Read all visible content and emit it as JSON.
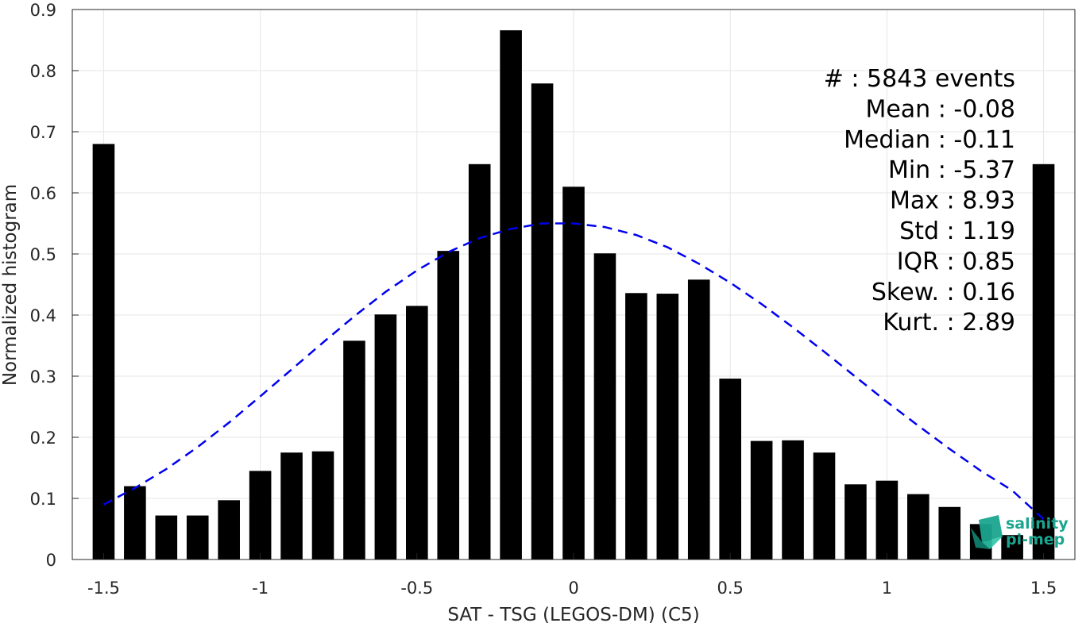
{
  "chart_data": {
    "type": "bar",
    "xlabel": "SAT - TSG (LEGOS-DM) (C5)",
    "ylabel": "Normalized histogram",
    "xlim": [
      -1.6,
      1.6
    ],
    "ylim": [
      0,
      0.9
    ],
    "grid": true,
    "bar_width": 0.07,
    "x_ticks": [
      {
        "value": -1.5,
        "label": "-1.5"
      },
      {
        "value": -1,
        "label": "-1"
      },
      {
        "value": -0.5,
        "label": "-0.5"
      },
      {
        "value": 0,
        "label": "0"
      },
      {
        "value": 0.5,
        "label": "0.5"
      },
      {
        "value": 1,
        "label": "1"
      },
      {
        "value": 1.5,
        "label": "1.5"
      }
    ],
    "y_ticks": [
      {
        "value": 0,
        "label": "0"
      },
      {
        "value": 0.1,
        "label": "0.1"
      },
      {
        "value": 0.2,
        "label": "0.2"
      },
      {
        "value": 0.3,
        "label": "0.3"
      },
      {
        "value": 0.4,
        "label": "0.4"
      },
      {
        "value": 0.5,
        "label": "0.5"
      },
      {
        "value": 0.6,
        "label": "0.6"
      },
      {
        "value": 0.7,
        "label": "0.7"
      },
      {
        "value": 0.8,
        "label": "0.8"
      },
      {
        "value": 0.9,
        "label": "0.9"
      }
    ],
    "bars": {
      "x": [
        -1.5,
        -1.4,
        -1.3,
        -1.2,
        -1.1,
        -1.0,
        -0.9,
        -0.8,
        -0.7,
        -0.6,
        -0.5,
        -0.4,
        -0.3,
        -0.2,
        -0.1,
        0.0,
        0.1,
        0.2,
        0.3,
        0.4,
        0.5,
        0.6,
        0.7,
        0.8,
        0.9,
        1.0,
        1.1,
        1.2,
        1.3,
        1.4,
        1.5
      ],
      "values": [
        0.68,
        0.12,
        0.072,
        0.072,
        0.097,
        0.145,
        0.175,
        0.177,
        0.358,
        0.401,
        0.415,
        0.505,
        0.647,
        0.866,
        0.779,
        0.61,
        0.501,
        0.436,
        0.435,
        0.458,
        0.296,
        0.194,
        0.195,
        0.175,
        0.123,
        0.129,
        0.107,
        0.086,
        0.058,
        0.04,
        0.647
      ]
    },
    "fit": {
      "style": "dashed",
      "color": "#0000ee",
      "x": [
        -1.5,
        -1.4,
        -1.3,
        -1.2,
        -1.1,
        -1.0,
        -0.9,
        -0.8,
        -0.7,
        -0.6,
        -0.5,
        -0.4,
        -0.3,
        -0.2,
        -0.1,
        0.0,
        0.1,
        0.2,
        0.3,
        0.4,
        0.5,
        0.6,
        0.7,
        0.8,
        0.9,
        1.0,
        1.1,
        1.2,
        1.3,
        1.4,
        1.5
      ],
      "values": [
        0.09,
        0.117,
        0.148,
        0.184,
        0.224,
        0.267,
        0.311,
        0.355,
        0.398,
        0.438,
        0.473,
        0.503,
        0.526,
        0.541,
        0.55,
        0.55,
        0.544,
        0.531,
        0.511,
        0.484,
        0.453,
        0.418,
        0.38,
        0.34,
        0.299,
        0.258,
        0.219,
        0.181,
        0.145,
        0.113,
        0.066
      ]
    },
    "bar_color": "#000000"
  },
  "stats": [
    {
      "label": "#  ",
      "value": "5843 events"
    },
    {
      "label": "Mean",
      "value": "-0.08"
    },
    {
      "label": "Median",
      "value": "-0.11"
    },
    {
      "label": "Min",
      "value": "-5.37"
    },
    {
      "label": "Max",
      "value": "8.93"
    },
    {
      "label": "Std",
      "value": "1.19"
    },
    {
      "label": "IQR",
      "value": "0.85"
    },
    {
      "label": "Skew.",
      "value": "0.16"
    },
    {
      "label": "Kurt.",
      "value": "2.89"
    }
  ],
  "logo": {
    "line1": "salinity",
    "line2": "pi-mep",
    "color": "#1aa58f"
  }
}
